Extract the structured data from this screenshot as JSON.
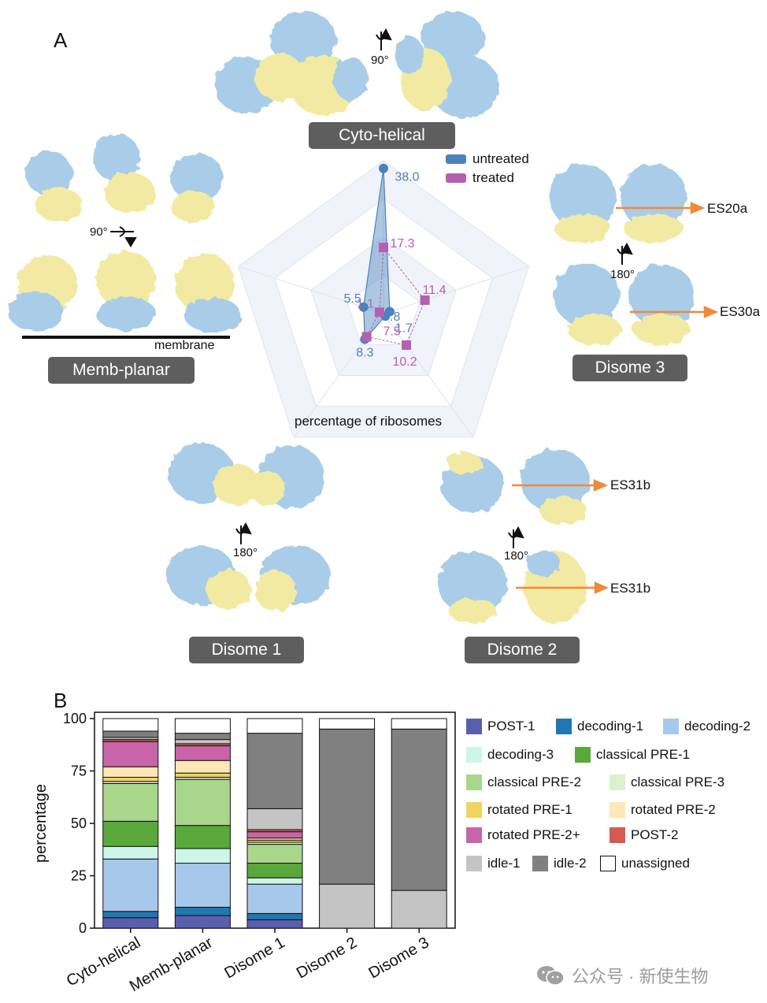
{
  "panel_a": {
    "letter": "A",
    "labels": {
      "cyto_helical": "Cyto-helical",
      "memb_planar": "Memb-planar",
      "disome1": "Disome 1",
      "disome2": "Disome 2",
      "disome3": "Disome 3"
    },
    "membrane_label": "membrane",
    "rotations": {
      "cyto": "90°",
      "memb": "90°",
      "disome1": "180°",
      "disome2": "180°",
      "disome3": "180°"
    },
    "es_labels": {
      "es20a": "ES20a",
      "es30a": "ES30a",
      "es31b_top": "ES31b",
      "es31b_bottom": "ES31b"
    },
    "colors": {
      "ribosome_blue": "#a9cde8",
      "ribosome_blue_dark": "#7fa6c4",
      "ribosome_yellow": "#f2eaa2",
      "arrow_orange": "#ee8a3a",
      "untreated": "#4a82bd",
      "treated": "#b55fb0"
    }
  },
  "chart_data": [
    {
      "type": "radar",
      "xlabel": "percentage of ribosomes",
      "axes": [
        "Cyto-helical",
        "Disome 3",
        "Disome 2",
        "Disome 1",
        "Memb-planar"
      ],
      "series": [
        {
          "name": "untreated",
          "values": [
            38.0,
            1.7,
            0.8,
            8.3,
            5.5
          ],
          "value_labels": [
            "38.0",
            "1.7",
            "0.8",
            "8.3",
            "5.5"
          ]
        },
        {
          "name": "treated",
          "values": [
            17.3,
            11.4,
            10.2,
            7.5,
            1.1
          ],
          "value_labels": [
            "17.3",
            "11.4",
            "10.2",
            "7.5",
            "1.1"
          ]
        }
      ],
      "legend": [
        "untreated",
        "treated"
      ],
      "legend_position": "top-right"
    },
    {
      "type": "bar",
      "stacked": true,
      "panel_letter": "B",
      "ylabel": "percentage",
      "ylim": [
        0,
        100
      ],
      "yticks": [
        "0",
        "25",
        "50",
        "75",
        "100"
      ],
      "categories": [
        "Cyto-helical",
        "Memb-planar",
        "Disome 1",
        "Disome 2",
        "Disome 3"
      ],
      "series": [
        {
          "name": "POST-1",
          "color": "#5a5fad",
          "values": [
            5,
            6,
            4,
            0,
            0
          ]
        },
        {
          "name": "decoding-1",
          "color": "#1f77b4",
          "values": [
            3,
            4,
            3,
            0,
            0
          ]
        },
        {
          "name": "decoding-2",
          "color": "#a6c8eb",
          "values": [
            25,
            21,
            14,
            0,
            0
          ]
        },
        {
          "name": "decoding-3",
          "color": "#cdf5ea",
          "values": [
            6,
            7,
            3,
            0,
            0
          ]
        },
        {
          "name": "classical PRE-1",
          "color": "#5aa83c",
          "values": [
            12,
            11,
            7,
            0,
            0
          ]
        },
        {
          "name": "classical PRE-2",
          "color": "#a8d68a",
          "values": [
            18,
            22,
            9,
            0,
            0
          ]
        },
        {
          "name": "classical PRE-3",
          "color": "#dcefcf",
          "values": [
            1,
            1,
            1,
            0,
            0
          ]
        },
        {
          "name": "rotated PRE-1",
          "color": "#f2d35c",
          "values": [
            2,
            2,
            1,
            0,
            0
          ]
        },
        {
          "name": "rotated PRE-2",
          "color": "#fbe8b4",
          "values": [
            5,
            6,
            1,
            0,
            0
          ]
        },
        {
          "name": "rotated PRE-2+",
          "color": "#c865a8",
          "values": [
            12,
            7,
            3,
            0,
            0
          ]
        },
        {
          "name": "POST-2",
          "color": "#d65a50",
          "values": [
            1,
            1,
            1,
            0,
            0
          ]
        },
        {
          "name": "idle-1",
          "color": "#c4c4c4",
          "values": [
            1,
            2,
            10,
            21,
            18
          ]
        },
        {
          "name": "idle-2",
          "color": "#808080",
          "values": [
            3,
            3,
            36,
            74,
            77
          ]
        },
        {
          "name": "unassigned",
          "color": "#ffffff",
          "values": [
            6,
            7,
            7,
            5,
            5
          ]
        }
      ],
      "legend_position": "right"
    }
  ],
  "watermark": "公众号 · 新使生物"
}
